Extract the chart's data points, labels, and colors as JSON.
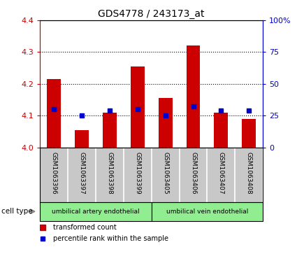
{
  "title": "GDS4778 / 243173_at",
  "samples": [
    "GSM1063396",
    "GSM1063397",
    "GSM1063398",
    "GSM1063399",
    "GSM1063405",
    "GSM1063406",
    "GSM1063407",
    "GSM1063408"
  ],
  "red_values": [
    4.215,
    4.055,
    4.11,
    4.255,
    4.155,
    4.32,
    4.11,
    4.09
  ],
  "blue_values": [
    4.12,
    4.1,
    4.115,
    4.12,
    4.1,
    4.13,
    4.115,
    4.115
  ],
  "ylim_left": [
    4.0,
    4.4
  ],
  "ylim_right": [
    0,
    100
  ],
  "yticks_left": [
    4.0,
    4.1,
    4.2,
    4.3,
    4.4
  ],
  "yticks_right": [
    0,
    25,
    50,
    75,
    100
  ],
  "cell_groups": [
    {
      "label": "umbilical artery endothelial",
      "color": "#90EE90"
    },
    {
      "label": "umbilical vein endothelial",
      "color": "#90EE90"
    }
  ],
  "bar_color": "#CC0000",
  "dot_color": "#0000CC",
  "background_color": "#ffffff",
  "tick_color_left": "#CC0000",
  "tick_color_right": "#0000CC",
  "bar_width": 0.5,
  "cell_type_label": "cell type",
  "legend_red": "transformed count",
  "legend_blue": "percentile rank within the sample",
  "label_bg": "#c8c8c8",
  "separator_color": "#ffffff"
}
